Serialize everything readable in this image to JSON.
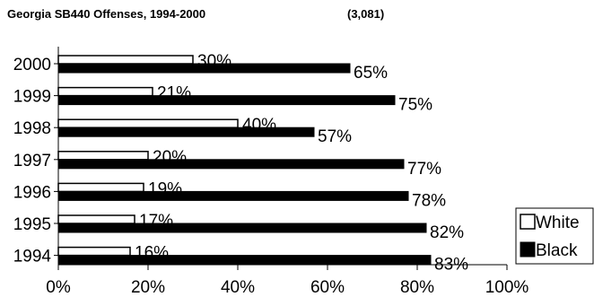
{
  "chart_data": {
    "type": "bar",
    "orientation": "horizontal",
    "title": "Georgia SB440 Offenses, 1994-2000",
    "subtitle": "(3,081)",
    "categories": [
      "2000",
      "1999",
      "1998",
      "1997",
      "1996",
      "1995",
      "1994"
    ],
    "series": [
      {
        "name": "White",
        "values": [
          30,
          21,
          40,
          20,
          19,
          17,
          16
        ],
        "labels": [
          "30%",
          "21%",
          "40%",
          "20%",
          "19%",
          "17%",
          "16%"
        ],
        "color": "#ffffff"
      },
      {
        "name": "Black",
        "values": [
          65,
          75,
          57,
          77,
          78,
          82,
          83
        ],
        "labels": [
          "65%",
          "75%",
          "57%",
          "77%",
          "78%",
          "82%",
          "83%"
        ],
        "color": "#000000"
      }
    ],
    "xlim": [
      0,
      100
    ],
    "xticks": [
      0,
      20,
      40,
      60,
      80,
      100
    ],
    "xtick_labels": [
      "0%",
      "20%",
      "40%",
      "60%",
      "80%",
      "100%"
    ],
    "xlabel": "",
    "ylabel": "",
    "grid": false,
    "legend_position": "bottom-right"
  }
}
